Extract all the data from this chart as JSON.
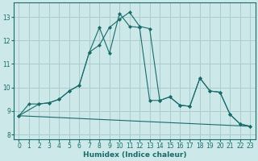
{
  "xlabel": "Humidex (Indice chaleur)",
  "bg_color": "#cce8e8",
  "grid_color": "#aacccc",
  "line_color": "#1a6b6b",
  "xlim": [
    -0.5,
    23.5
  ],
  "ylim": [
    7.8,
    13.6
  ],
  "yticks": [
    8,
    9,
    10,
    11,
    12,
    13
  ],
  "xticks": [
    0,
    1,
    2,
    3,
    4,
    5,
    6,
    7,
    8,
    9,
    10,
    11,
    12,
    13,
    14,
    15,
    16,
    17,
    18,
    19,
    20,
    21,
    22,
    23
  ],
  "line1_x": [
    0,
    1,
    2,
    3,
    4,
    5,
    6,
    7,
    8,
    9,
    10,
    11,
    12,
    13,
    14,
    15,
    16,
    17,
    18,
    19,
    20,
    21,
    22,
    23
  ],
  "line1_y": [
    8.8,
    9.3,
    9.3,
    9.35,
    9.5,
    9.85,
    10.1,
    11.5,
    11.8,
    12.55,
    12.9,
    13.2,
    12.6,
    12.5,
    9.45,
    9.6,
    9.25,
    9.2,
    10.4,
    9.85,
    9.8,
    8.85,
    8.45,
    8.35
  ],
  "line2_x": [
    0,
    2,
    3,
    4,
    5,
    6,
    7,
    8,
    9,
    10,
    11,
    12,
    13,
    14,
    15,
    16,
    17,
    18,
    19,
    20,
    21,
    22,
    23
  ],
  "line2_y": [
    8.8,
    9.3,
    9.35,
    9.5,
    9.85,
    10.1,
    11.5,
    12.55,
    11.45,
    13.15,
    12.6,
    12.55,
    9.45,
    9.45,
    9.6,
    9.25,
    9.2,
    10.4,
    9.85,
    9.8,
    8.85,
    8.45,
    8.35
  ],
  "line3_x": [
    0,
    23
  ],
  "line3_y": [
    8.8,
    8.35
  ]
}
